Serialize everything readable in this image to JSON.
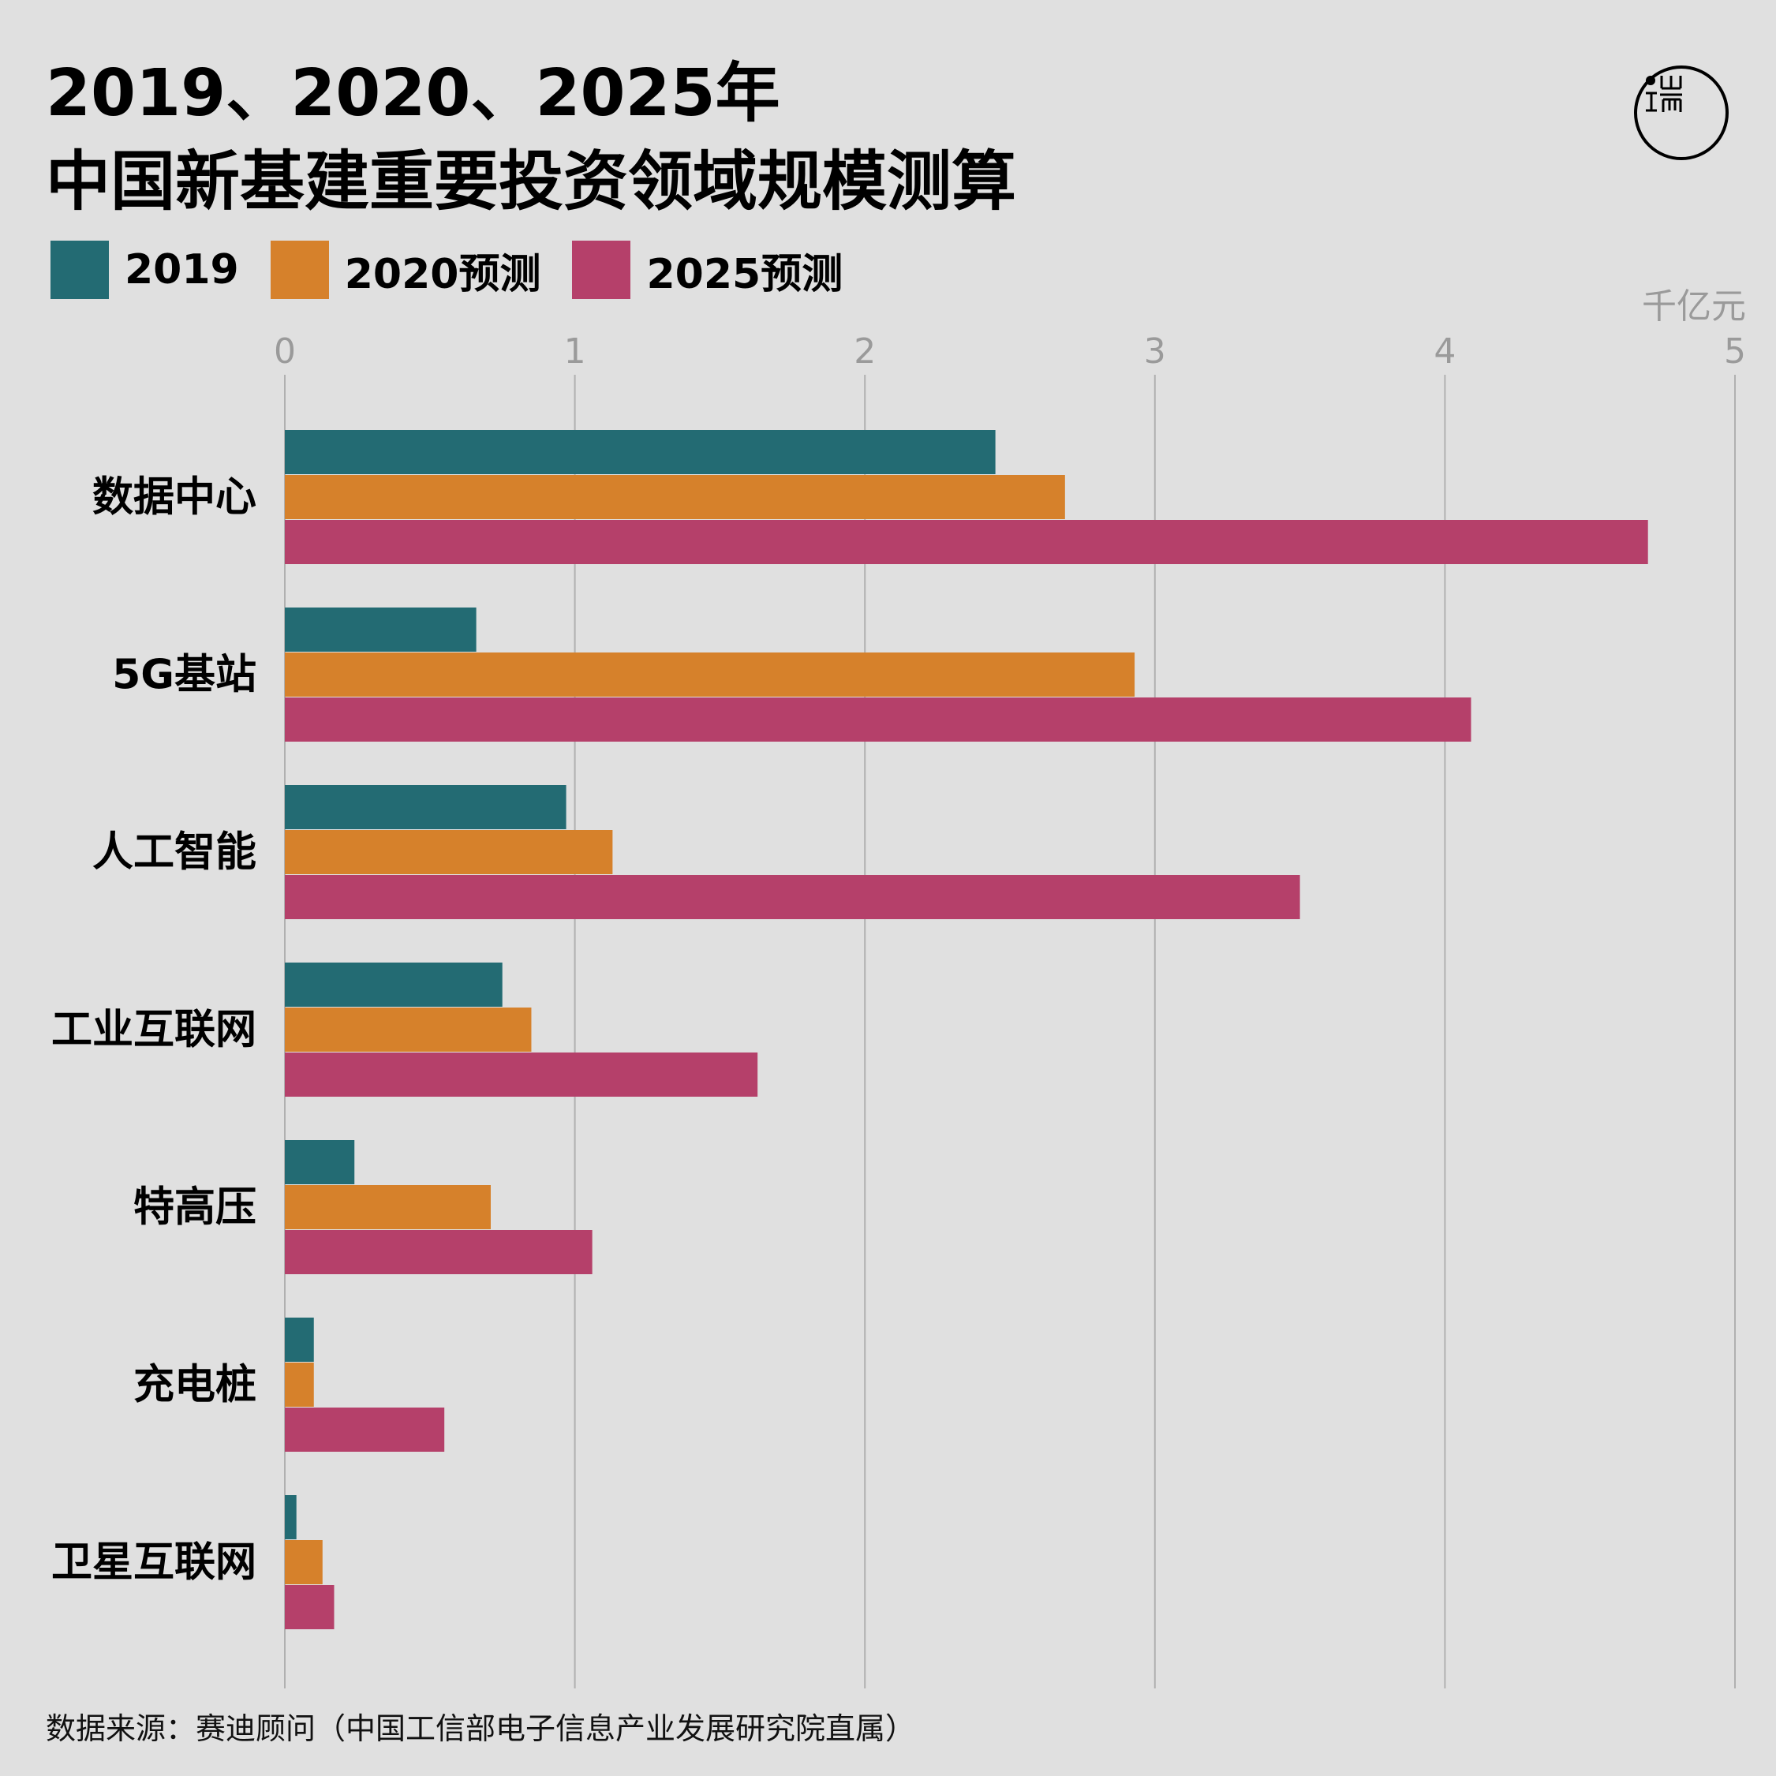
{
  "title": {
    "line1": "2019、2020、2025年",
    "line2": "中国新基建重要投资领域规模测算"
  },
  "legend": [
    {
      "label": "2019",
      "color": "#236b73"
    },
    {
      "label": "2020预测",
      "color": "#d6812b"
    },
    {
      "label": "2025预测",
      "color": "#b5406a"
    }
  ],
  "unit": "千亿元",
  "source": "数据来源：赛迪顾问（中国工信部电子信息产业发展研究院直属）",
  "logo_icon": "端-logo-icon",
  "chart_data": {
    "type": "bar",
    "orientation": "horizontal",
    "categories": [
      "数据中心",
      "5G基站",
      "人工智能",
      "工业互联网",
      "特高压",
      "充电桩",
      "卫星互联网"
    ],
    "series": [
      {
        "name": "2019",
        "color": "#236b73",
        "values": [
          2.45,
          0.66,
          0.97,
          0.75,
          0.24,
          0.1,
          0.04
        ]
      },
      {
        "name": "2020预测",
        "color": "#d6812b",
        "values": [
          2.69,
          2.93,
          1.13,
          0.85,
          0.71,
          0.1,
          0.13
        ]
      },
      {
        "name": "2025预测",
        "color": "#b5406a",
        "values": [
          4.7,
          4.09,
          3.5,
          1.63,
          1.06,
          0.55,
          0.17
        ]
      }
    ],
    "xlim": [
      0,
      5
    ],
    "xticks": [
      "0",
      "1",
      "2",
      "3",
      "4",
      "5"
    ],
    "xlabel": "千亿元",
    "grid": true,
    "legend_position": "top-left"
  }
}
